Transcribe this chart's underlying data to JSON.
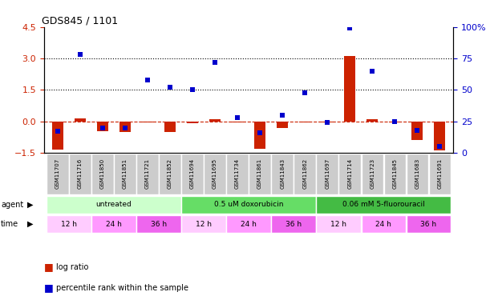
{
  "title": "GDS845 / 1101",
  "samples": [
    "GSM11707",
    "GSM11716",
    "GSM11850",
    "GSM11851",
    "GSM11721",
    "GSM11852",
    "GSM11694",
    "GSM11695",
    "GSM11734",
    "GSM11861",
    "GSM11843",
    "GSM11862",
    "GSM11697",
    "GSM11714",
    "GSM11723",
    "GSM11845",
    "GSM11683",
    "GSM11691"
  ],
  "log_ratio": [
    -1.35,
    0.15,
    -0.45,
    -0.5,
    -0.05,
    -0.5,
    -0.08,
    0.12,
    -0.05,
    -1.3,
    -0.3,
    -0.05,
    -0.05,
    3.1,
    0.12,
    -0.05,
    -0.9,
    -1.4
  ],
  "percentile_rank": [
    17,
    78,
    20,
    20,
    58,
    52,
    50,
    72,
    28,
    16,
    30,
    48,
    24,
    99,
    65,
    25,
    18,
    5
  ],
  "ylim_left": [
    -1.5,
    4.5
  ],
  "ylim_right": [
    0,
    100
  ],
  "yticks_left": [
    -1.5,
    0.0,
    1.5,
    3.0,
    4.5
  ],
  "yticks_right": [
    0,
    25,
    50,
    75,
    100
  ],
  "hlines": [
    3.0,
    1.5
  ],
  "agent_groups": [
    {
      "label": "untreated",
      "start": 0,
      "end": 6,
      "color": "#ccffcc"
    },
    {
      "label": "0.5 uM doxorubicin",
      "start": 6,
      "end": 12,
      "color": "#66dd66"
    },
    {
      "label": "0.06 mM 5-fluorouracil",
      "start": 12,
      "end": 18,
      "color": "#44bb44"
    }
  ],
  "time_groups": [
    {
      "label": "12 h",
      "start": 0,
      "end": 2,
      "color": "#ffccff"
    },
    {
      "label": "24 h",
      "start": 2,
      "end": 4,
      "color": "#ff99ff"
    },
    {
      "label": "36 h",
      "start": 4,
      "end": 6,
      "color": "#ee66ee"
    },
    {
      "label": "12 h",
      "start": 6,
      "end": 8,
      "color": "#ffccff"
    },
    {
      "label": "24 h",
      "start": 8,
      "end": 10,
      "color": "#ff99ff"
    },
    {
      "label": "36 h",
      "start": 10,
      "end": 12,
      "color": "#ee66ee"
    },
    {
      "label": "12 h",
      "start": 12,
      "end": 14,
      "color": "#ffccff"
    },
    {
      "label": "24 h",
      "start": 14,
      "end": 16,
      "color": "#ff99ff"
    },
    {
      "label": "36 h",
      "start": 16,
      "end": 18,
      "color": "#ee66ee"
    }
  ],
  "bar_color_red": "#cc2200",
  "bar_color_blue": "#0000cc",
  "zero_line_color": "#cc2200",
  "hline_color": "#000000",
  "bar_width": 0.5,
  "left_ylabel_color": "#cc2200",
  "right_ylabel_color": "#0000cc",
  "sample_box_color": "#cccccc",
  "bg_color": "#ffffff"
}
